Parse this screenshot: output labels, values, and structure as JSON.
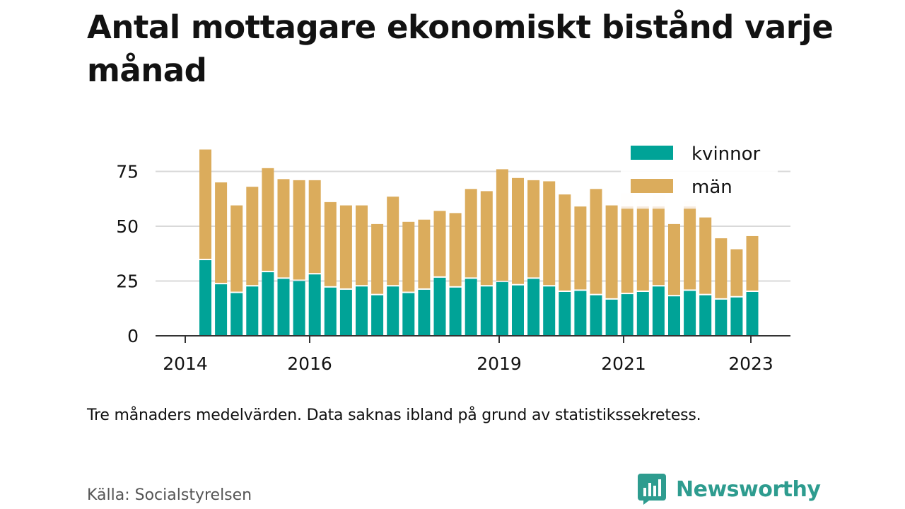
{
  "title": "Antal mottagare ekonomiskt bistånd varje månad",
  "note": "Tre månaders medelvärden. Data saknas ibland på grund av statistikssekretess.",
  "source": "Källa: Socialstyrelsen",
  "brand": "Newsworthy",
  "colors": {
    "kvinnor": "#00a397",
    "man": "#dbac5c",
    "faint": "#f6eadd",
    "grid": "#d9d9d9",
    "axis": "#333333",
    "text": "#121212",
    "brand": "#2e9c8f"
  },
  "chart_data": {
    "type": "bar",
    "stacked": true,
    "ylim": [
      0,
      90
    ],
    "yticks": [
      0,
      25,
      50,
      75
    ],
    "xticks": [
      "2014",
      "2016",
      "2019",
      "2021",
      "2023"
    ],
    "legend": [
      "kvinnor",
      "män"
    ],
    "legend_position": "top-right",
    "grid": true,
    "series": [
      {
        "name": "kvinnor",
        "values": [
          34.5,
          23.5,
          19.5,
          22.5,
          29,
          26,
          25,
          28,
          22,
          21,
          22.5,
          18.5,
          22.5,
          19.5,
          21,
          26.5,
          22,
          26,
          22.5,
          24.5,
          23,
          26,
          22.5,
          20,
          20.5,
          18.5,
          16.5,
          19,
          20,
          22.5,
          18,
          20.5,
          18.5,
          16.5,
          17.5,
          20
        ]
      },
      {
        "name": "män",
        "values": [
          50.5,
          46.5,
          40,
          45.5,
          47.5,
          45.5,
          46,
          43,
          39,
          38.5,
          37,
          32.5,
          41,
          32.5,
          32,
          30.5,
          34,
          41,
          43.5,
          51.5,
          49,
          45,
          48,
          44.5,
          38.5,
          48.5,
          43,
          39,
          38,
          35.5,
          33,
          37.5,
          35.5,
          28,
          22,
          25.5
        ]
      }
    ],
    "faint_totals": [
      null,
      null,
      null,
      null,
      null,
      null,
      null,
      null,
      null,
      null,
      null,
      null,
      null,
      null,
      null,
      null,
      null,
      null,
      null,
      null,
      null,
      null,
      null,
      null,
      null,
      null,
      null,
      65,
      62,
      64,
      null,
      61.5,
      null,
      null,
      null,
      null
    ]
  }
}
